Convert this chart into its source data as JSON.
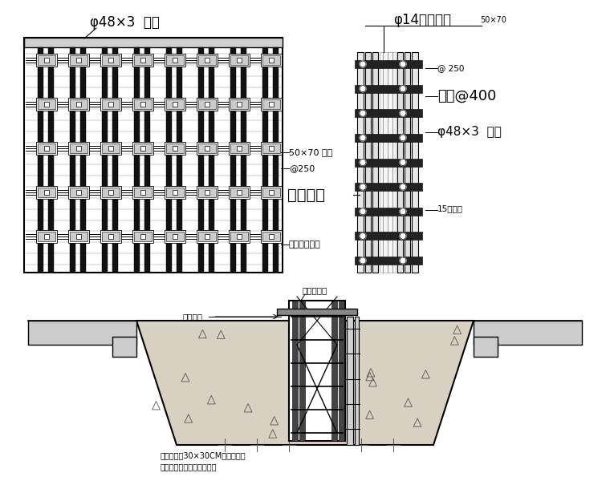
{
  "bg_color": "#ffffff",
  "lc": "#000000",
  "label_tl": "φ48×3  钉管",
  "label_tr": "φ14止水螺杆",
  "label_tr2": "50×70",
  "label_guanAt400": "钉管@400",
  "label_phi48": "φ48×3  钉管",
  "label_at250": "@250",
  "label_at250b": "@ 250",
  "label_50x70": "50×70 木坊",
  "label_zhishui": "止水钉板",
  "label_15": "15厉模板",
  "label_lunkou": "轮扣式脚手架",
  "label_bottom1": "盖孔钉管架",
  "label_bottom2": "土防支撞",
  "label_bottom_note": "在害坚上放30×30CM的透气孔，\n按处置模板支撞的大小而定"
}
